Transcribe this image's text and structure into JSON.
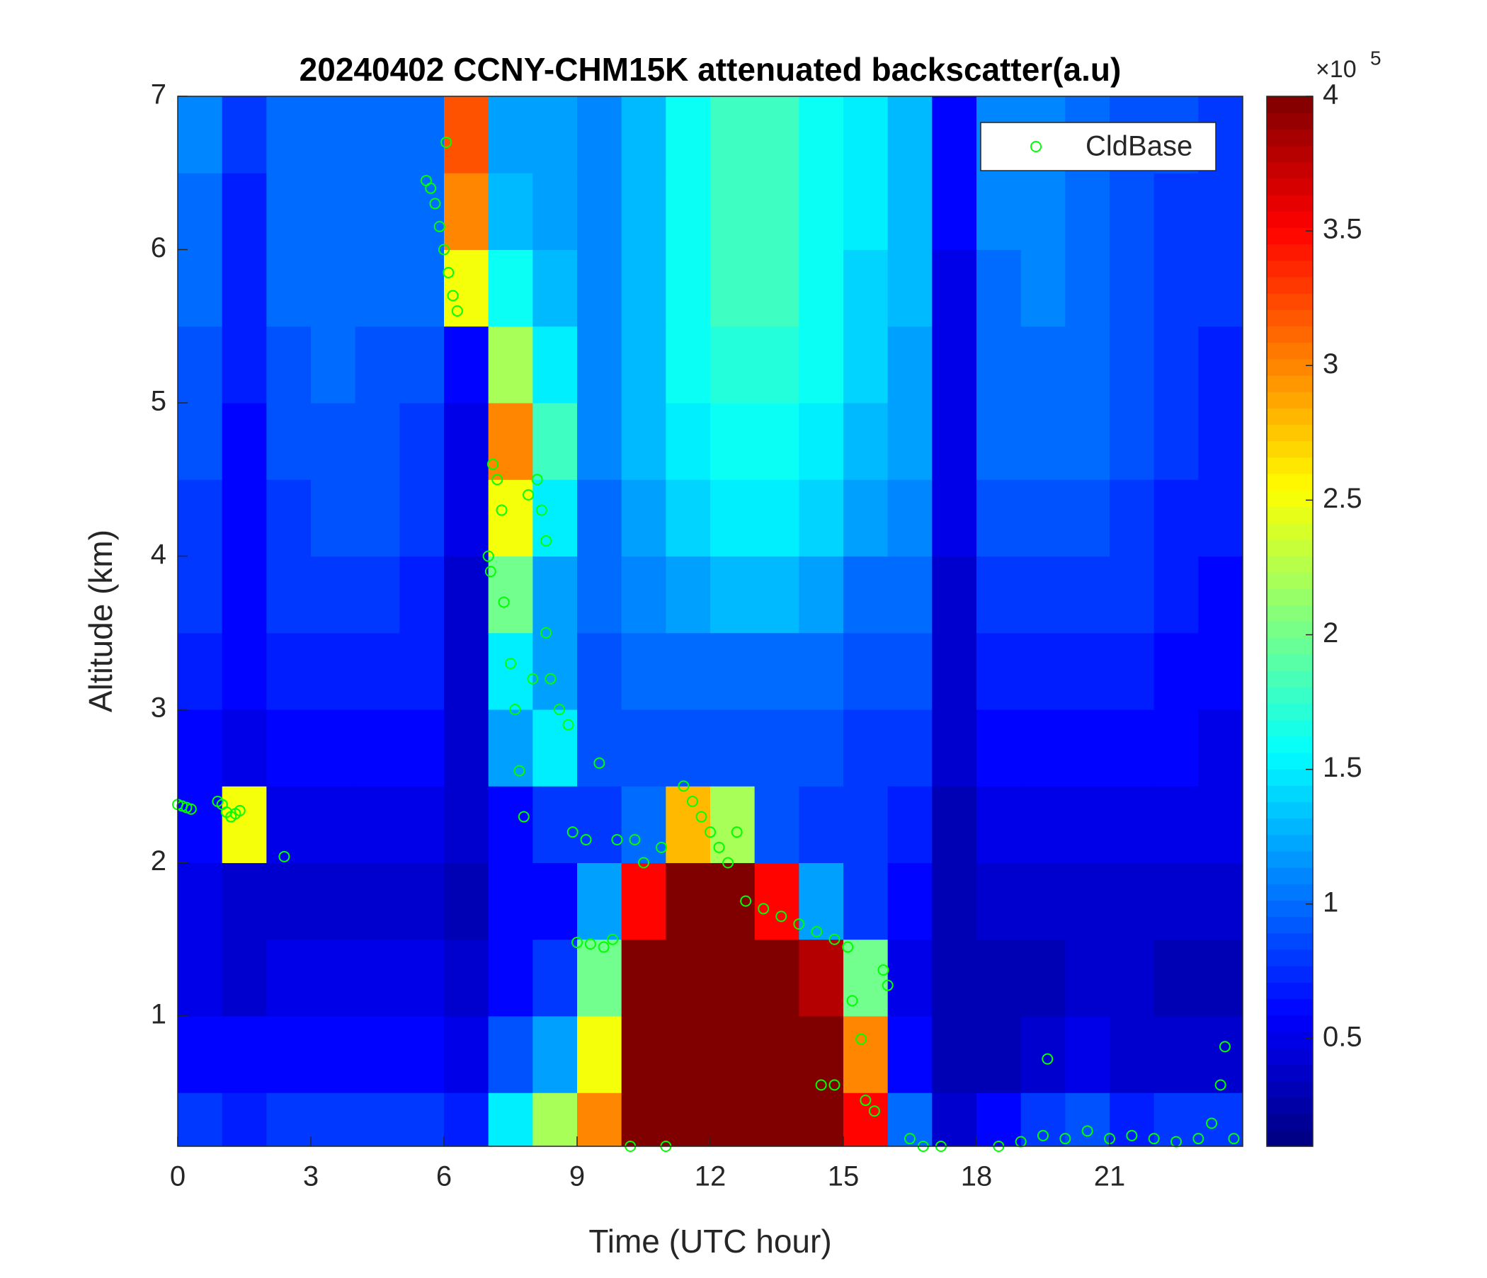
{
  "chart_data": {
    "type": "heatmap",
    "title": "20240402 CCNY-CHM15K attenuated backscatter(a.u)",
    "x_label": "Time (UTC hour)",
    "y_label": "Altitude (km)",
    "colorbar_label_base": "×10",
    "colorbar_label_exp": "5",
    "colormap": "jet",
    "xlim": [
      0,
      24
    ],
    "ylim": [
      0.15,
      7
    ],
    "xticks": [
      0,
      3,
      6,
      9,
      12,
      15,
      18,
      21
    ],
    "yticks": [
      1,
      2,
      3,
      4,
      5,
      6,
      7
    ],
    "clim": [
      0.1,
      4
    ],
    "cticks": [
      0.5,
      1,
      1.5,
      2,
      2.5,
      3,
      3.5,
      4
    ],
    "x_edges": [
      0,
      1,
      2,
      3,
      4,
      5,
      6,
      7,
      8,
      9,
      10,
      11,
      12,
      13,
      14,
      15,
      16,
      17,
      18,
      19,
      20,
      21,
      22,
      23,
      24
    ],
    "y_edges": [
      0.15,
      0.5,
      1,
      1.5,
      2,
      2.5,
      3,
      3.5,
      4,
      4.5,
      5,
      5.5,
      6,
      6.5,
      7
    ],
    "z": [
      [
        0.8,
        0.7,
        0.8,
        0.8,
        0.8,
        0.8,
        0.7,
        1.5,
        2.2,
        3.0,
        4,
        4,
        4,
        4,
        4,
        3.5,
        1.0,
        0.4,
        0.6,
        0.8,
        0.9,
        0.7,
        0.8,
        0.8
      ],
      [
        0.6,
        0.6,
        0.6,
        0.6,
        0.6,
        0.6,
        0.5,
        0.9,
        1.2,
        2.5,
        4,
        4,
        4,
        4,
        4,
        3.0,
        0.6,
        0.3,
        0.3,
        0.4,
        0.5,
        0.4,
        0.4,
        0.4
      ],
      [
        0.5,
        0.4,
        0.5,
        0.5,
        0.5,
        0.5,
        0.4,
        0.6,
        0.8,
        2.0,
        4,
        4,
        4,
        4,
        3.8,
        2.0,
        0.5,
        0.3,
        0.3,
        0.3,
        0.4,
        0.4,
        0.3,
        0.3
      ],
      [
        0.5,
        0.4,
        0.4,
        0.4,
        0.4,
        0.4,
        0.3,
        0.6,
        0.6,
        1.2,
        3.5,
        4,
        4,
        3.5,
        1.2,
        0.8,
        0.6,
        0.3,
        0.4,
        0.4,
        0.4,
        0.4,
        0.4,
        0.4
      ],
      [
        0.6,
        2.5,
        0.5,
        0.5,
        0.5,
        0.5,
        0.4,
        0.6,
        0.8,
        0.8,
        1.0,
        2.8,
        2.2,
        0.9,
        0.8,
        0.8,
        0.7,
        0.3,
        0.5,
        0.5,
        0.5,
        0.5,
        0.5,
        0.5
      ],
      [
        0.6,
        0.5,
        0.6,
        0.6,
        0.6,
        0.6,
        0.4,
        1.2,
        1.5,
        0.9,
        0.9,
        0.9,
        0.9,
        0.9,
        0.9,
        0.8,
        0.8,
        0.4,
        0.6,
        0.6,
        0.6,
        0.6,
        0.6,
        0.5
      ],
      [
        0.7,
        0.6,
        0.7,
        0.7,
        0.7,
        0.7,
        0.4,
        1.5,
        1.2,
        0.9,
        1.0,
        1.0,
        1.0,
        1.0,
        1.0,
        0.9,
        0.9,
        0.4,
        0.7,
        0.7,
        0.7,
        0.7,
        0.6,
        0.6
      ],
      [
        0.8,
        0.6,
        0.8,
        0.8,
        0.8,
        0.7,
        0.4,
        2.0,
        1.2,
        1.0,
        1.1,
        1.2,
        1.3,
        1.3,
        1.2,
        1.0,
        1.0,
        0.4,
        0.8,
        0.8,
        0.8,
        0.8,
        0.7,
        0.6
      ],
      [
        0.8,
        0.6,
        0.8,
        0.9,
        0.9,
        0.8,
        0.5,
        2.5,
        1.5,
        1.0,
        1.2,
        1.4,
        1.5,
        1.5,
        1.4,
        1.2,
        1.1,
        0.5,
        0.9,
        0.9,
        0.9,
        0.8,
        0.7,
        0.7
      ],
      [
        0.9,
        0.6,
        0.9,
        0.9,
        0.9,
        0.8,
        0.5,
        3.0,
        1.8,
        1.1,
        1.3,
        1.5,
        1.6,
        1.6,
        1.5,
        1.3,
        1.2,
        0.5,
        1.0,
        1.0,
        1.0,
        0.9,
        0.8,
        0.7
      ],
      [
        0.9,
        0.7,
        0.9,
        1.0,
        0.9,
        0.9,
        0.6,
        2.2,
        1.5,
        1.1,
        1.3,
        1.6,
        1.7,
        1.7,
        1.6,
        1.4,
        1.2,
        0.5,
        1.0,
        1.0,
        1.0,
        0.9,
        0.8,
        0.7
      ],
      [
        1.0,
        0.7,
        1.0,
        1.0,
        1.0,
        1.0,
        2.5,
        1.6,
        1.3,
        1.1,
        1.3,
        1.6,
        1.8,
        1.8,
        1.6,
        1.4,
        1.3,
        0.5,
        1.0,
        1.1,
        1.0,
        0.9,
        0.8,
        0.8
      ],
      [
        1.0,
        0.7,
        1.0,
        1.0,
        1.0,
        1.0,
        3.0,
        1.3,
        1.2,
        1.1,
        1.3,
        1.6,
        1.8,
        1.8,
        1.6,
        1.5,
        1.3,
        0.6,
        1.1,
        1.1,
        1.0,
        0.9,
        0.8,
        0.8
      ],
      [
        1.1,
        0.8,
        1.0,
        1.0,
        1.0,
        1.0,
        3.2,
        1.2,
        1.2,
        1.1,
        1.3,
        1.6,
        1.8,
        1.8,
        1.6,
        1.5,
        1.3,
        0.6,
        1.1,
        1.1,
        1.0,
        0.9,
        0.9,
        0.8
      ]
    ],
    "legend": "upper right",
    "series": [
      {
        "name": "CldBase",
        "type": "scatter",
        "color": "#00ff00",
        "x": [
          0.0,
          0.1,
          0.2,
          0.3,
          0.9,
          1.0,
          1.1,
          1.2,
          1.3,
          1.4,
          2.4,
          5.6,
          5.7,
          5.8,
          5.9,
          6.0,
          6.1,
          6.2,
          6.3,
          6.05,
          7.0,
          7.05,
          7.1,
          7.2,
          7.3,
          7.35,
          7.5,
          7.6,
          7.7,
          7.8,
          7.9,
          8.0,
          8.1,
          8.2,
          8.3,
          8.3,
          8.4,
          8.6,
          8.8,
          8.9,
          9.2,
          9.5,
          9.0,
          9.3,
          9.6,
          9.8,
          9.9,
          10.2,
          10.3,
          10.5,
          10.9,
          11.0,
          11.4,
          11.6,
          11.8,
          12.0,
          12.2,
          12.4,
          12.6,
          12.8,
          13.2,
          13.6,
          14.0,
          14.4,
          14.8,
          15.1,
          14.5,
          14.8,
          15.2,
          15.4,
          15.5,
          15.7,
          15.9,
          16.0,
          16.5,
          16.8,
          17.2,
          18.5,
          19.0,
          19.5,
          19.6,
          20.0,
          20.5,
          21.0,
          21.5,
          22.0,
          22.5,
          23.0,
          23.3,
          23.5,
          23.6,
          23.8
        ],
        "y": [
          2.38,
          2.37,
          2.36,
          2.35,
          2.4,
          2.38,
          2.33,
          2.3,
          2.32,
          2.34,
          2.04,
          6.45,
          6.4,
          6.3,
          6.15,
          6.0,
          5.85,
          5.7,
          5.6,
          6.7,
          4.0,
          3.9,
          4.6,
          4.5,
          4.3,
          3.7,
          3.3,
          3.0,
          2.6,
          2.3,
          4.4,
          3.2,
          4.5,
          4.3,
          4.1,
          3.5,
          3.2,
          3.0,
          2.9,
          2.2,
          2.15,
          2.65,
          1.48,
          1.47,
          1.45,
          1.5,
          2.15,
          0.15,
          2.15,
          2.0,
          2.1,
          0.15,
          2.5,
          2.4,
          2.3,
          2.2,
          2.1,
          2.0,
          2.2,
          1.75,
          1.7,
          1.65,
          1.6,
          1.55,
          1.5,
          1.45,
          0.55,
          0.55,
          1.1,
          0.85,
          0.45,
          0.38,
          1.3,
          1.2,
          0.2,
          0.15,
          0.15,
          0.15,
          0.18,
          0.22,
          0.72,
          0.2,
          0.25,
          0.2,
          0.22,
          0.2,
          0.18,
          0.2,
          0.3,
          0.55,
          0.8,
          0.2
        ]
      }
    ]
  }
}
